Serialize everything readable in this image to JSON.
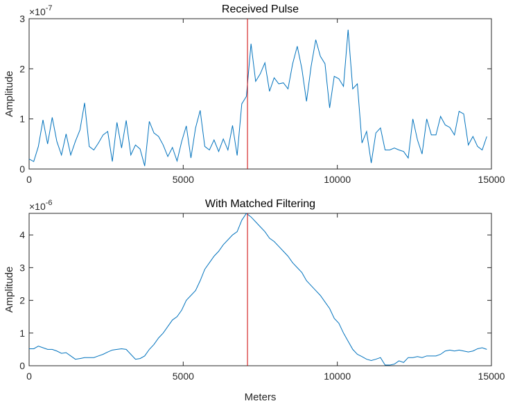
{
  "chart_data": [
    {
      "type": "line",
      "title": "Received Pulse",
      "ylabel": "Amplitude",
      "y_multiplier": {
        "base": "×10",
        "exponent": "-7"
      },
      "color": "#0072bd",
      "xlim": [
        0,
        15000
      ],
      "xticks": [
        0,
        5000,
        10000,
        15000
      ],
      "ylim": [
        0,
        3
      ],
      "yticks": [
        0,
        1,
        2,
        3
      ],
      "vline": {
        "x": 7085,
        "color": "#cc0000"
      },
      "x": [
        0,
        150,
        300,
        450,
        600,
        750,
        900,
        1050,
        1200,
        1350,
        1500,
        1650,
        1800,
        1950,
        2100,
        2250,
        2400,
        2550,
        2700,
        2850,
        3000,
        3150,
        3300,
        3450,
        3600,
        3750,
        3900,
        4050,
        4200,
        4350,
        4500,
        4650,
        4800,
        4950,
        5100,
        5250,
        5400,
        5550,
        5700,
        5850,
        6000,
        6150,
        6300,
        6450,
        6600,
        6750,
        6900,
        7050,
        7200,
        7350,
        7500,
        7650,
        7800,
        7950,
        8100,
        8250,
        8400,
        8550,
        8700,
        8850,
        9000,
        9150,
        9300,
        9450,
        9600,
        9750,
        9900,
        10050,
        10200,
        10350,
        10500,
        10650,
        10800,
        10950,
        11100,
        11250,
        11400,
        11550,
        11700,
        11850,
        12000,
        12150,
        12300,
        12450,
        12600,
        12750,
        12900,
        13050,
        13200,
        13350,
        13500,
        13650,
        13800,
        13950,
        14100,
        14250,
        14400,
        14550,
        14700,
        14850
      ],
      "values": [
        0.2,
        0.15,
        0.45,
        0.98,
        0.5,
        1.03,
        0.55,
        0.28,
        0.7,
        0.28,
        0.55,
        0.78,
        1.32,
        0.45,
        0.38,
        0.52,
        0.68,
        0.75,
        0.15,
        0.93,
        0.42,
        0.97,
        0.28,
        0.48,
        0.4,
        0.06,
        0.95,
        0.72,
        0.65,
        0.48,
        0.25,
        0.43,
        0.16,
        0.55,
        0.86,
        0.22,
        0.82,
        1.17,
        0.45,
        0.38,
        0.58,
        0.35,
        0.6,
        0.38,
        0.87,
        0.27,
        1.3,
        1.45,
        2.5,
        1.75,
        1.9,
        2.12,
        1.55,
        1.82,
        1.7,
        1.72,
        1.6,
        2.1,
        2.45,
        2.0,
        1.35,
        2.05,
        2.58,
        2.25,
        2.1,
        1.22,
        1.85,
        1.8,
        1.65,
        2.78,
        1.6,
        1.7,
        0.52,
        0.75,
        0.12,
        0.72,
        0.82,
        0.38,
        0.38,
        0.42,
        0.38,
        0.35,
        0.22,
        1.0,
        0.58,
        0.3,
        1.0,
        0.68,
        0.68,
        1.05,
        0.88,
        0.83,
        0.68,
        1.15,
        1.1,
        0.48,
        0.65,
        0.45,
        0.38,
        0.65
      ]
    },
    {
      "type": "line",
      "title": "With Matched Filtering",
      "ylabel": "Amplitude",
      "xlabel": "Meters",
      "y_multiplier": {
        "base": "×10",
        "exponent": "-6"
      },
      "color": "#0072bd",
      "xlim": [
        0,
        15000
      ],
      "xticks": [
        0,
        5000,
        10000,
        15000
      ],
      "ylim": [
        0,
        4.66
      ],
      "yticks": [
        0,
        1,
        2,
        3,
        4
      ],
      "vline": {
        "x": 7085,
        "color": "#cc0000"
      },
      "x": [
        0,
        150,
        300,
        450,
        600,
        750,
        900,
        1050,
        1200,
        1350,
        1500,
        1650,
        1800,
        1950,
        2100,
        2250,
        2400,
        2550,
        2700,
        2850,
        3000,
        3150,
        3300,
        3450,
        3600,
        3750,
        3900,
        4050,
        4200,
        4350,
        4500,
        4650,
        4800,
        4950,
        5100,
        5250,
        5400,
        5550,
        5700,
        5850,
        6000,
        6150,
        6300,
        6450,
        6600,
        6750,
        6900,
        7050,
        7200,
        7350,
        7500,
        7650,
        7800,
        7950,
        8100,
        8250,
        8400,
        8550,
        8700,
        8850,
        9000,
        9150,
        9300,
        9450,
        9600,
        9750,
        9900,
        10050,
        10200,
        10350,
        10500,
        10650,
        10800,
        10950,
        11100,
        11250,
        11400,
        11550,
        11700,
        11850,
        12000,
        12150,
        12300,
        12450,
        12600,
        12750,
        12900,
        13050,
        13200,
        13350,
        13500,
        13650,
        13800,
        13950,
        14100,
        14250,
        14400,
        14550,
        14700,
        14850
      ],
      "values": [
        0.52,
        0.52,
        0.6,
        0.55,
        0.5,
        0.5,
        0.45,
        0.38,
        0.4,
        0.3,
        0.2,
        0.22,
        0.25,
        0.25,
        0.25,
        0.3,
        0.35,
        0.42,
        0.48,
        0.5,
        0.52,
        0.5,
        0.35,
        0.2,
        0.22,
        0.3,
        0.5,
        0.65,
        0.85,
        1.0,
        1.2,
        1.4,
        1.5,
        1.7,
        2.0,
        2.15,
        2.3,
        2.6,
        2.95,
        3.15,
        3.35,
        3.5,
        3.7,
        3.85,
        4.0,
        4.1,
        4.45,
        4.66,
        4.55,
        4.4,
        4.25,
        4.1,
        3.9,
        3.8,
        3.65,
        3.5,
        3.35,
        3.15,
        3.0,
        2.85,
        2.6,
        2.45,
        2.3,
        2.15,
        1.95,
        1.75,
        1.45,
        1.3,
        1.0,
        0.75,
        0.5,
        0.35,
        0.28,
        0.2,
        0.16,
        0.2,
        0.25,
        0.02,
        0.02,
        0.05,
        0.15,
        0.1,
        0.25,
        0.25,
        0.28,
        0.25,
        0.3,
        0.3,
        0.3,
        0.35,
        0.45,
        0.48,
        0.45,
        0.48,
        0.45,
        0.42,
        0.45,
        0.52,
        0.55,
        0.5
      ]
    }
  ]
}
